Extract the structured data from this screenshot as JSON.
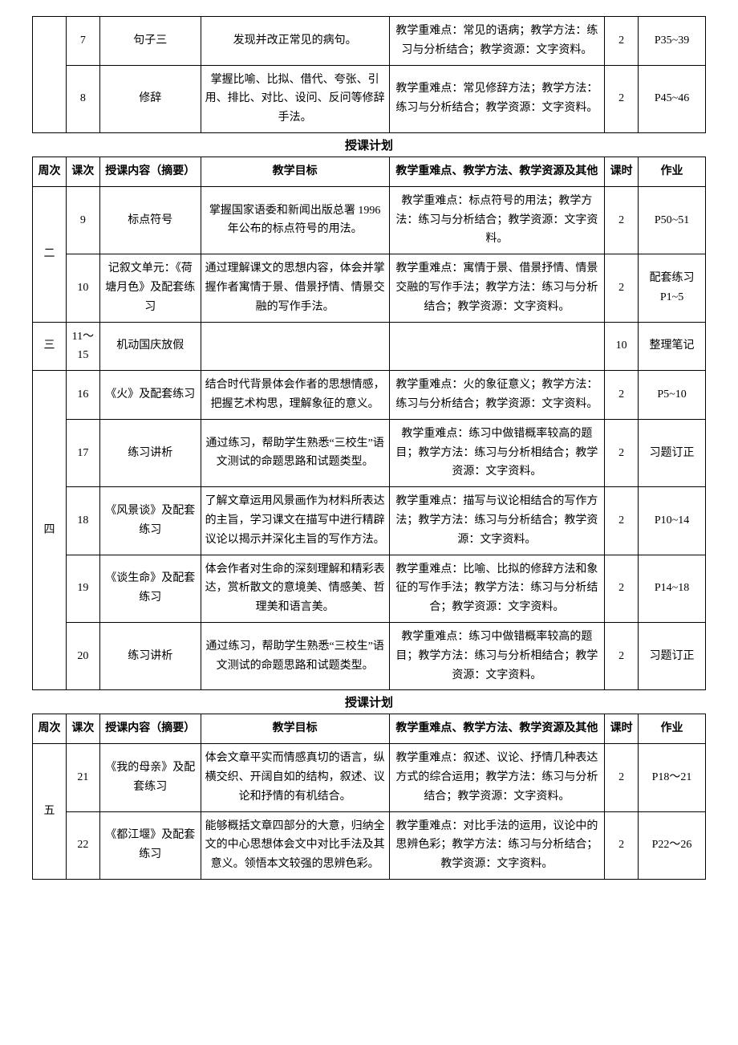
{
  "caption": "授课计划",
  "headers": {
    "week": "周次",
    "lesson": "课次",
    "content": "授课内容（摘要）",
    "goal": "教学目标",
    "focus": "教学重难点、教学方法、教学资源及其他",
    "hours": "课时",
    "homework": "作业"
  },
  "section1_rows": [
    {
      "lesson": "7",
      "content": "句子三",
      "goal": "发现并改正常见的病句。",
      "focus": "教学重难点：常见的语病；教学方法：练习与分析结合；教学资源：文字资料。",
      "hours": "2",
      "homework": "P35~39"
    },
    {
      "lesson": "8",
      "content": "修辞",
      "goal": "掌握比喻、比拟、借代、夸张、引用、排比、对比、设问、反问等修辞手法。",
      "focus": "教学重难点：常见修辞方法；教学方法：练习与分析结合；教学资源：文字资料。",
      "hours": "2",
      "homework": "P45~46"
    }
  ],
  "section2_rows": [
    {
      "week": "二",
      "week_rowspan": 2,
      "lesson": "9",
      "content": "标点符号",
      "goal": "掌握国家语委和新闻出版总署 1996 年公布的标点符号的用法。",
      "focus": "教学重难点：标点符号的用法；教学方法：练习与分析结合；教学资源：文字资料。",
      "hours": "2",
      "homework": "P50~51"
    },
    {
      "lesson": "10",
      "content": "记叙文单元：《荷塘月色》及配套练习",
      "goal": "通过理解课文的思想内容，体会并掌握作者寓情于景、借景抒情、情景交融的写作手法。",
      "focus": "教学重难点：寓情于景、借景抒情、情景交融的写作手法；教学方法：练习与分析结合；教学资源：文字资料。",
      "hours": "2",
      "homework": "配套练习P1~5"
    },
    {
      "week": "三",
      "week_rowspan": 1,
      "lesson": "11～15",
      "content": "机动国庆放假",
      "goal": "",
      "focus": "",
      "hours": "10",
      "homework": "整理笔记"
    },
    {
      "week": "四",
      "week_rowspan": 5,
      "lesson": "16",
      "content": "《火》及配套练习",
      "goal": "结合时代背景体会作者的思想情感，把握艺术构思，理解象征的意义。",
      "focus": "教学重难点：火的象征意义；教学方法：练习与分析结合；教学资源：文字资料。",
      "hours": "2",
      "homework": "P5~10"
    },
    {
      "lesson": "17",
      "content": "练习讲析",
      "goal": "通过练习，帮助学生熟悉“三校生”语文测试的命题思路和试题类型。",
      "focus": "教学重难点：练习中做错概率较高的题目；教学方法：练习与分析相结合；教学资源：文字资料。",
      "hours": "2",
      "homework": "习题订正"
    },
    {
      "lesson": "18",
      "content": "《风景谈》及配套练习",
      "goal": "了解文章运用风景画作为材料所表达的主旨，学习课文在描写中进行精辟议论以揭示并深化主旨的写作方法。",
      "focus": "教学重难点：描写与议论相结合的写作方法；教学方法：练习与分析结合；教学资源：文字资料。",
      "hours": "2",
      "homework": "P10~14"
    },
    {
      "lesson": "19",
      "content": "《谈生命》及配套练习",
      "goal": "体会作者对生命的深刻理解和精彩表达，赏析散文的意境美、情感美、哲理美和语言美。",
      "focus": "教学重难点：比喻、比拟的修辞方法和象征的写作手法；教学方法：练习与分析结合；教学资源：文字资料。",
      "hours": "2",
      "homework": "P14~18"
    },
    {
      "lesson": "20",
      "content": "练习讲析",
      "goal": "通过练习，帮助学生熟悉“三校生”语文测试的命题思路和试题类型。",
      "focus": "教学重难点：练习中做错概率较高的题目；教学方法：练习与分析相结合；教学资源：文字资料。",
      "hours": "2",
      "homework": "习题订正"
    }
  ],
  "section3_rows": [
    {
      "week": "五",
      "week_rowspan": 2,
      "lesson": "21",
      "content": "《我的母亲》及配套练习",
      "goal": "体会文章平实而情感真切的语言，纵横交织、开阔自如的结构，叙述、议论和抒情的有机结合。",
      "focus": "教学重难点：叙述、议论、抒情几种表达方式的综合运用；教学方法：练习与分析结合；教学资源：文字资料。",
      "hours": "2",
      "homework": "P18～21"
    },
    {
      "lesson": "22",
      "content": "《都江堰》及配套练习",
      "goal": "能够概括文章四部分的大意，归纳全文的中心思想体会文中对比手法及其意义。领悟本文较强的思辨色彩。",
      "focus": "教学重难点：对比手法的运用，议论中的思辨色彩；教学方法：练习与分析结合；教学资源：文字资料。",
      "hours": "2",
      "homework": "P22～26"
    }
  ],
  "style": {
    "font_family": "SimSun",
    "font_size_pt": 10.5,
    "border_color": "#000000",
    "background_color": "#ffffff",
    "text_color": "#000000",
    "line_height": 1.7
  }
}
